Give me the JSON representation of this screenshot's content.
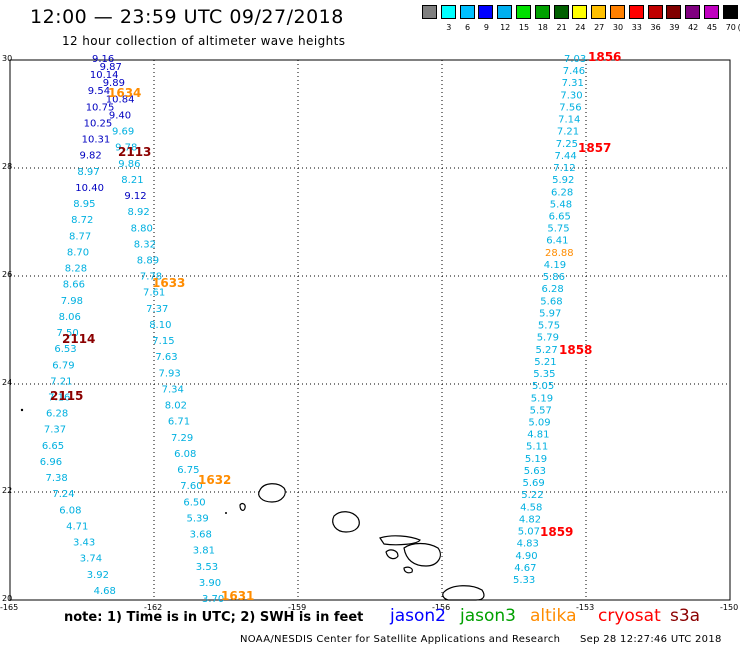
{
  "header": {
    "title": "12:00 — 23:59 UTC 09/27/2018",
    "subtitle": "12 hour collection of altimeter wave heights"
  },
  "legend": {
    "unit": "(ft)",
    "bins": [
      {
        "label": "",
        "color": "#7f7f7f"
      },
      {
        "label": "3",
        "color": "#00ffff"
      },
      {
        "label": "6",
        "color": "#00c0ff"
      },
      {
        "label": "9",
        "color": "#0000ff"
      },
      {
        "label": "12",
        "color": "#00b0f0"
      },
      {
        "label": "15",
        "color": "#00e000"
      },
      {
        "label": "18",
        "color": "#00a000"
      },
      {
        "label": "21",
        "color": "#006000"
      },
      {
        "label": "24",
        "color": "#ffff00"
      },
      {
        "label": "27",
        "color": "#ffc000"
      },
      {
        "label": "30",
        "color": "#ff8000"
      },
      {
        "label": "33",
        "color": "#ff0000"
      },
      {
        "label": "36",
        "color": "#c00000"
      },
      {
        "label": "39",
        "color": "#800000"
      },
      {
        "label": "42",
        "color": "#800080"
      },
      {
        "label": "45",
        "color": "#c000c0"
      },
      {
        "label": "70",
        "color": "#000000"
      }
    ]
  },
  "map": {
    "lat_labels": [
      "30",
      "28",
      "26",
      "24",
      "22",
      "20"
    ],
    "lon_labels": [
      "-165",
      "-162",
      "-159",
      "-156",
      "-153",
      "-150"
    ],
    "colors": {
      "jason2": "#0000c0",
      "jason3": "#00a000",
      "altika": "#ff8c00",
      "cryosat": "#ff0000",
      "s3a": "#8b0000",
      "swh": "#00b0e0"
    },
    "tracks": [
      {
        "id": "west",
        "values": [
          {
            "v": "9.16",
            "c": "jason2"
          },
          {
            "v": "9.87",
            "c": "jason2"
          },
          {
            "v": "10.14",
            "c": "jason2"
          },
          {
            "v": "9.89",
            "c": "jason2"
          },
          {
            "v": "9.54",
            "c": "jason2"
          },
          {
            "v": "10.84",
            "c": "jason2"
          },
          {
            "v": "10.75",
            "c": "jason2"
          },
          {
            "v": "9.40",
            "c": "jason2"
          },
          {
            "v": "10.25",
            "c": "jason2"
          },
          {
            "v": "9.69",
            "c": "swh"
          },
          {
            "v": "10.31",
            "c": "jason2"
          },
          {
            "v": "9.78",
            "c": "swh"
          },
          {
            "v": "9.82",
            "c": "jason2"
          },
          {
            "v": "9.86",
            "c": "swh"
          },
          {
            "v": "8.97",
            "c": "swh"
          },
          {
            "v": "8.21",
            "c": "swh"
          },
          {
            "v": "10.40",
            "c": "jason2"
          },
          {
            "v": "9.12",
            "c": "jason2"
          },
          {
            "v": "8.95",
            "c": "swh"
          },
          {
            "v": "8.92",
            "c": "swh"
          },
          {
            "v": "8.72",
            "c": "swh"
          },
          {
            "v": "8.80",
            "c": "swh"
          },
          {
            "v": "8.77",
            "c": "swh"
          },
          {
            "v": "8.32",
            "c": "swh"
          },
          {
            "v": "8.70",
            "c": "swh"
          },
          {
            "v": "8.89",
            "c": "swh"
          },
          {
            "v": "8.28",
            "c": "swh"
          },
          {
            "v": "7.78",
            "c": "swh"
          },
          {
            "v": "8.66",
            "c": "swh"
          },
          {
            "v": "7.61",
            "c": "swh"
          },
          {
            "v": "7.98",
            "c": "swh"
          },
          {
            "v": "7.37",
            "c": "swh"
          },
          {
            "v": "8.06",
            "c": "swh"
          },
          {
            "v": "8.10",
            "c": "swh"
          },
          {
            "v": "7.50",
            "c": "swh"
          },
          {
            "v": "7.15",
            "c": "swh"
          },
          {
            "v": "6.53",
            "c": "swh"
          },
          {
            "v": "7.63",
            "c": "swh"
          },
          {
            "v": "6.79",
            "c": "swh"
          },
          {
            "v": "7.93",
            "c": "swh"
          },
          {
            "v": "7.21",
            "c": "swh"
          },
          {
            "v": "7.34",
            "c": "swh"
          },
          {
            "v": "7.16",
            "c": "swh"
          },
          {
            "v": "8.02",
            "c": "swh"
          },
          {
            "v": "6.28",
            "c": "swh"
          },
          {
            "v": "6.71",
            "c": "swh"
          },
          {
            "v": "7.37",
            "c": "swh"
          },
          {
            "v": "7.29",
            "c": "swh"
          },
          {
            "v": "6.65",
            "c": "swh"
          },
          {
            "v": "6.08",
            "c": "swh"
          },
          {
            "v": "6.96",
            "c": "swh"
          },
          {
            "v": "6.75",
            "c": "swh"
          },
          {
            "v": "7.38",
            "c": "swh"
          },
          {
            "v": "7.60",
            "c": "swh"
          },
          {
            "v": "7.24",
            "c": "swh"
          },
          {
            "v": "6.50",
            "c": "swh"
          },
          {
            "v": "6.08",
            "c": "swh"
          },
          {
            "v": "5.39",
            "c": "swh"
          },
          {
            "v": "4.71",
            "c": "swh"
          },
          {
            "v": "3.68",
            "c": "swh"
          },
          {
            "v": "3.43",
            "c": "swh"
          },
          {
            "v": "3.81",
            "c": "swh"
          },
          {
            "v": "3.74",
            "c": "swh"
          },
          {
            "v": "3.53",
            "c": "swh"
          },
          {
            "v": "3.92",
            "c": "swh"
          },
          {
            "v": "3.90",
            "c": "swh"
          },
          {
            "v": "4.68",
            "c": "swh"
          },
          {
            "v": "3.70",
            "c": "swh"
          }
        ]
      },
      {
        "id": "east",
        "values": [
          {
            "v": "7.03",
            "c": "swh"
          },
          {
            "v": "7.46",
            "c": "swh"
          },
          {
            "v": "7.31",
            "c": "swh"
          },
          {
            "v": "7.30",
            "c": "swh"
          },
          {
            "v": "7.56",
            "c": "swh"
          },
          {
            "v": "7.14",
            "c": "swh"
          },
          {
            "v": "7.21",
            "c": "swh"
          },
          {
            "v": "7.25",
            "c": "swh"
          },
          {
            "v": "7.44",
            "c": "swh"
          },
          {
            "v": "7.12",
            "c": "swh"
          },
          {
            "v": "5.92",
            "c": "swh"
          },
          {
            "v": "6.28",
            "c": "swh"
          },
          {
            "v": "5.48",
            "c": "swh"
          },
          {
            "v": "6.65",
            "c": "swh"
          },
          {
            "v": "5.75",
            "c": "swh"
          },
          {
            "v": "6.41",
            "c": "swh"
          },
          {
            "v": "28.88",
            "c": "altika"
          },
          {
            "v": "4.19",
            "c": "swh"
          },
          {
            "v": "5.86",
            "c": "swh"
          },
          {
            "v": "6.28",
            "c": "swh"
          },
          {
            "v": "5.68",
            "c": "swh"
          },
          {
            "v": "5.97",
            "c": "swh"
          },
          {
            "v": "5.75",
            "c": "swh"
          },
          {
            "v": "5.79",
            "c": "swh"
          },
          {
            "v": "5.27",
            "c": "swh"
          },
          {
            "v": "5.21",
            "c": "swh"
          },
          {
            "v": "5.35",
            "c": "swh"
          },
          {
            "v": "5.05",
            "c": "swh"
          },
          {
            "v": "5.19",
            "c": "swh"
          },
          {
            "v": "5.57",
            "c": "swh"
          },
          {
            "v": "5.09",
            "c": "swh"
          },
          {
            "v": "4.81",
            "c": "swh"
          },
          {
            "v": "5.11",
            "c": "swh"
          },
          {
            "v": "5.19",
            "c": "swh"
          },
          {
            "v": "5.63",
            "c": "swh"
          },
          {
            "v": "5.69",
            "c": "swh"
          },
          {
            "v": "5.22",
            "c": "swh"
          },
          {
            "v": "4.58",
            "c": "swh"
          },
          {
            "v": "4.82",
            "c": "swh"
          },
          {
            "v": "5.07",
            "c": "swh"
          },
          {
            "v": "4.83",
            "c": "swh"
          },
          {
            "v": "4.90",
            "c": "swh"
          },
          {
            "v": "4.67",
            "c": "swh"
          },
          {
            "v": "5.33",
            "c": "swh"
          }
        ]
      }
    ],
    "time_labels": [
      {
        "t": "1856",
        "c": "cryosat"
      },
      {
        "t": "1634",
        "c": "altika"
      },
      {
        "t": "1857",
        "c": "cryosat"
      },
      {
        "t": "2113",
        "c": "s3a"
      },
      {
        "t": "1633",
        "c": "altika"
      },
      {
        "t": "2114",
        "c": "s3a"
      },
      {
        "t": "1858",
        "c": "cryosat"
      },
      {
        "t": "2115",
        "c": "s3a"
      },
      {
        "t": "1632",
        "c": "altika"
      },
      {
        "t": "1859",
        "c": "cryosat"
      },
      {
        "t": "1631",
        "c": "altika"
      }
    ]
  },
  "footer": {
    "note": "note:  1) Time is in UTC;  2) SWH is in feet",
    "satellites": [
      {
        "name": "jason2",
        "color": "#0000ff"
      },
      {
        "name": "jason3",
        "color": "#00a000"
      },
      {
        "name": "altika",
        "color": "#ff8c00"
      },
      {
        "name": "cryosat",
        "color": "#ff0000"
      },
      {
        "name": "s3a",
        "color": "#8b0000"
      }
    ],
    "credit": "NOAA/NESDIS Center for Satellite Applications and Research",
    "timestamp": "Sep 28 12:27:46 UTC 2018"
  }
}
